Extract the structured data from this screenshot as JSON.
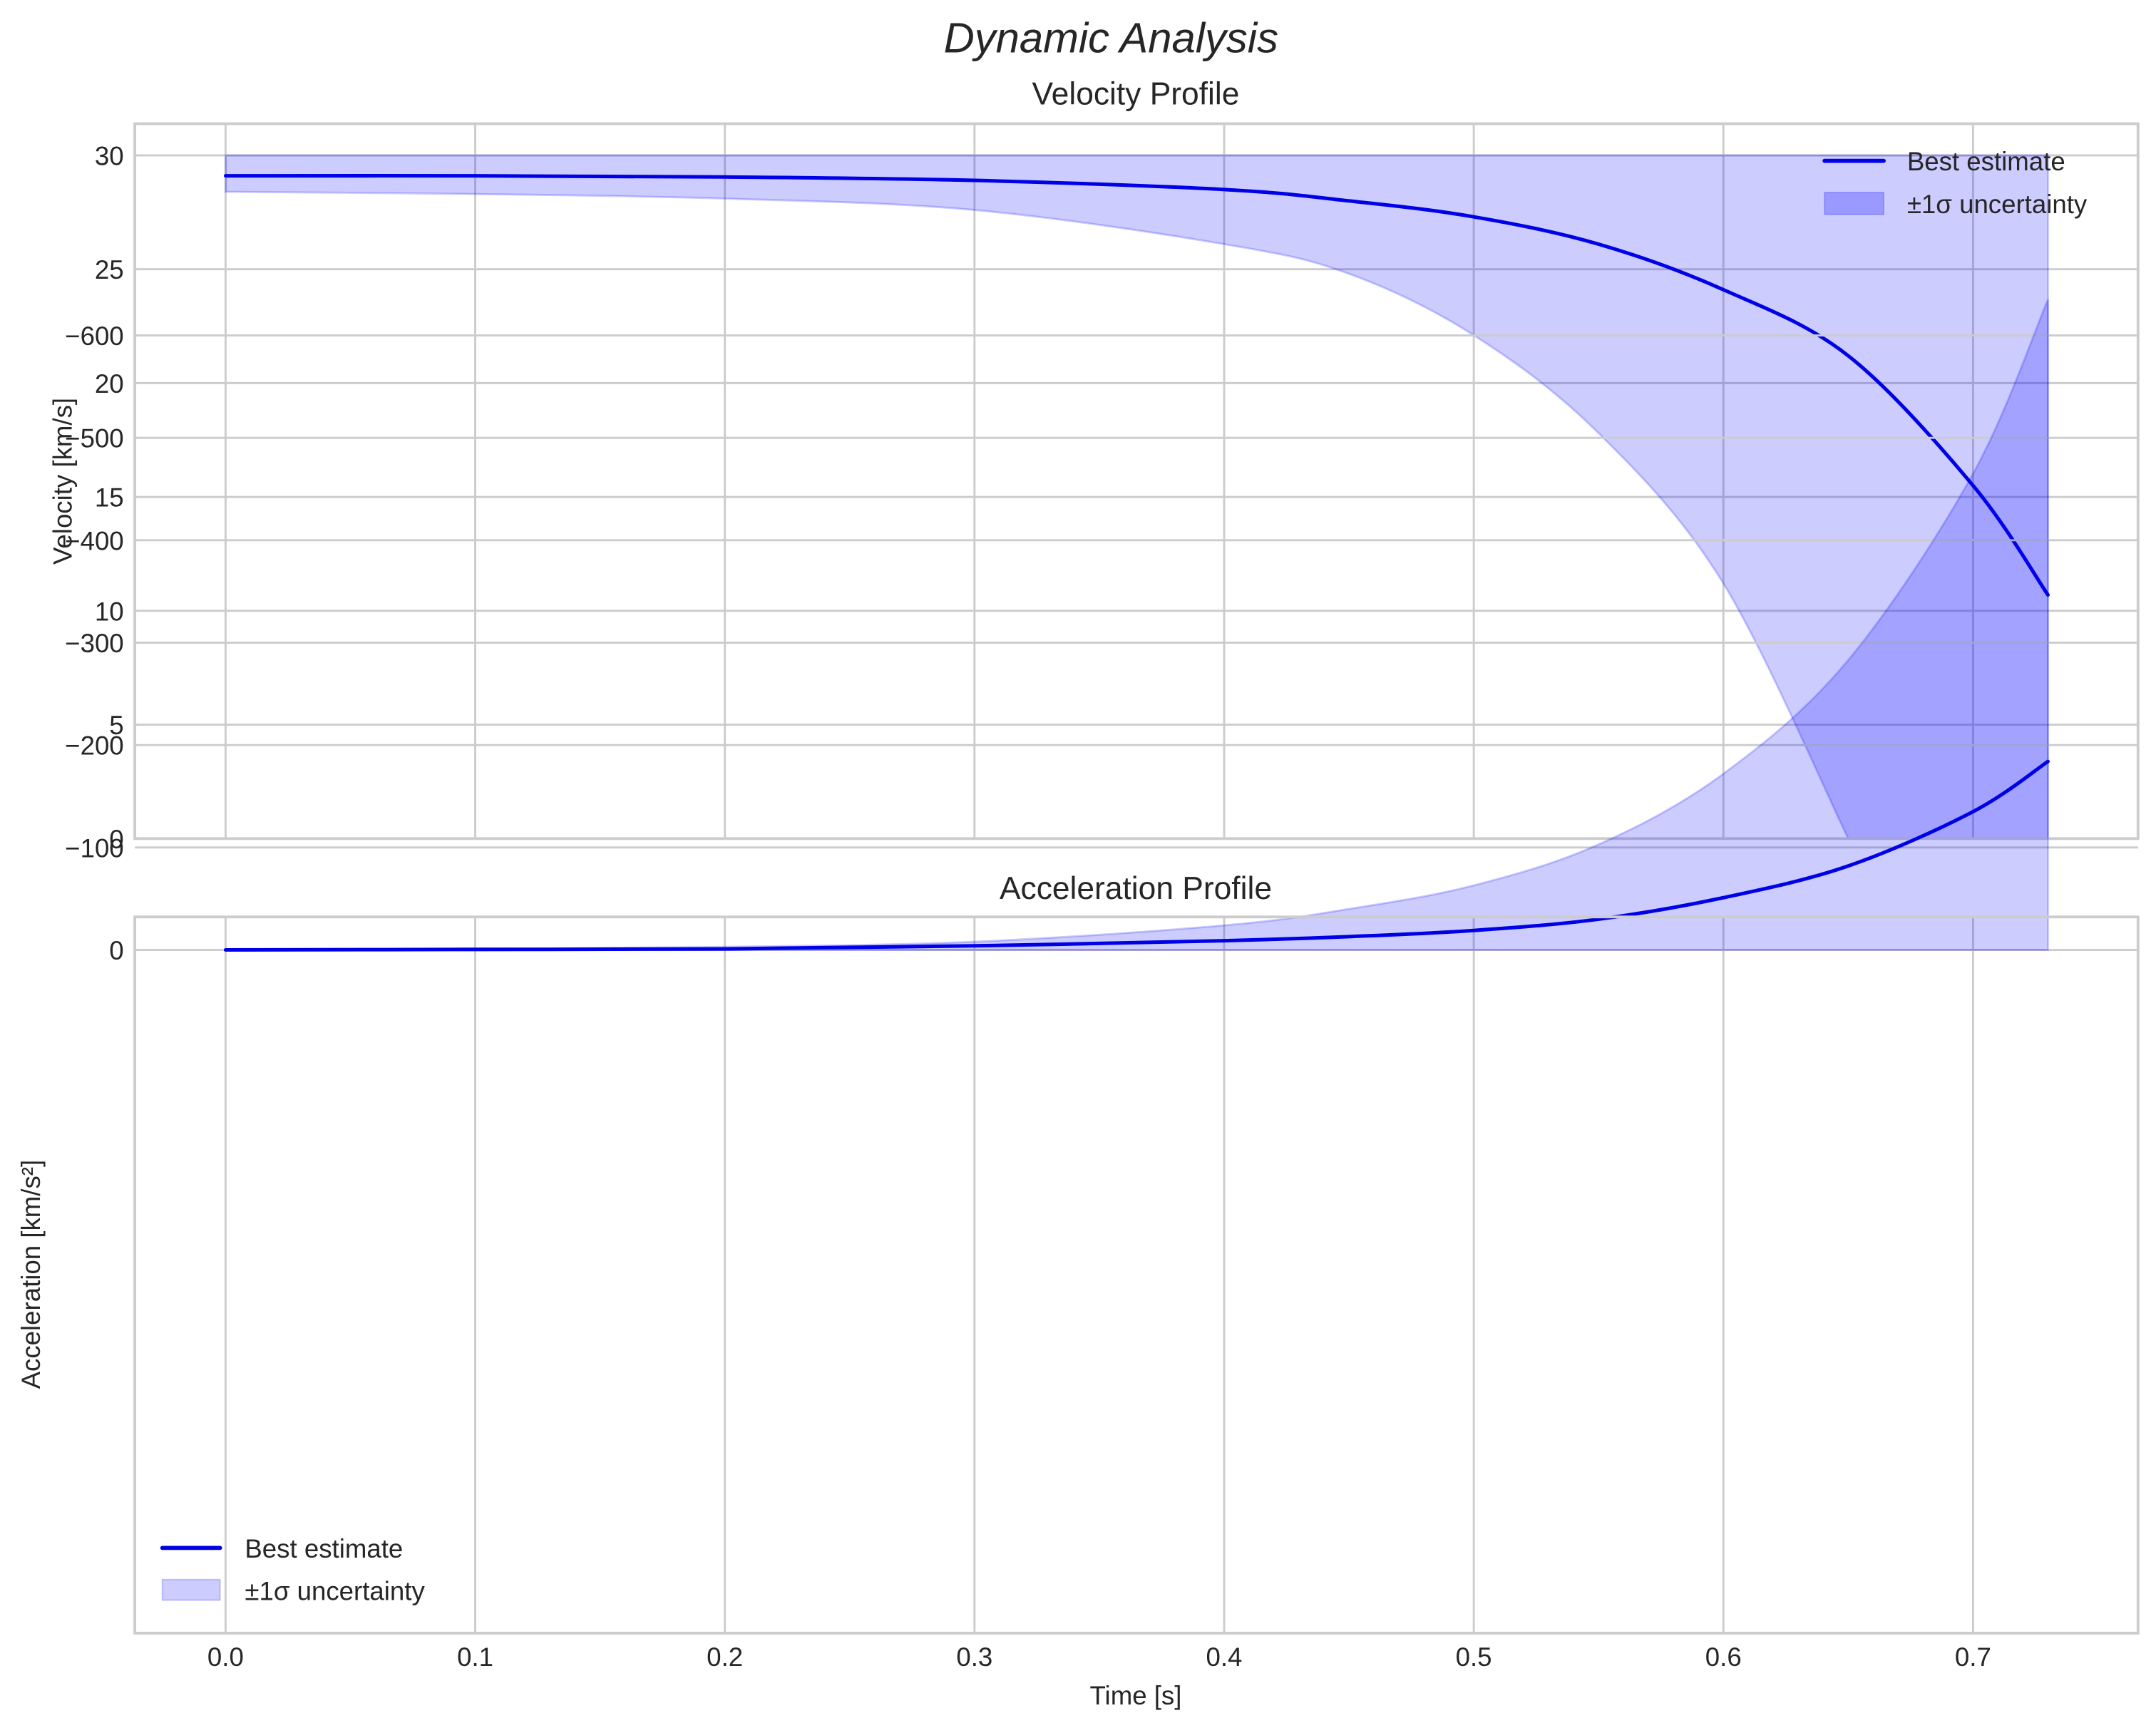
{
  "figure": {
    "suptitle": "Dynamic Analysis",
    "xlabel": "Time [s]",
    "colors": {
      "line": "#0000e6",
      "band": "#0000ff",
      "grid": "#cccccc",
      "text": "#262626"
    }
  },
  "panels": [
    {
      "title": "Velocity Profile",
      "ylabel": "Velocity [km/s]",
      "yticks": [
        "0",
        "5",
        "10",
        "15",
        "20",
        "25",
        "30"
      ],
      "legend": {
        "position": "upper right",
        "items": [
          "Best estimate",
          "±1σ uncertainty"
        ]
      }
    },
    {
      "title": "Acceleration Profile",
      "ylabel": "Acceleration [km/s²]",
      "yticks": [
        "0",
        "−100",
        "−200",
        "−300",
        "−400",
        "−500",
        "−600"
      ],
      "legend": {
        "position": "lower left",
        "items": [
          "Best estimate",
          "±1σ uncertainty"
        ]
      }
    }
  ],
  "xticks": [
    "0.0",
    "0.1",
    "0.2",
    "0.3",
    "0.4",
    "0.5",
    "0.6",
    "0.7"
  ],
  "chart_data": [
    {
      "type": "line",
      "title": "Velocity Profile",
      "xlabel": "Time [s]",
      "ylabel": "Velocity [km/s]",
      "xlim": [
        -0.036,
        0.766
      ],
      "ylim": [
        0,
        31.4
      ],
      "grid": true,
      "legend_position": "upper right",
      "x": [
        0.0,
        0.1,
        0.2,
        0.3,
        0.4,
        0.45,
        0.5,
        0.55,
        0.6,
        0.65,
        0.7,
        0.73
      ],
      "series": [
        {
          "name": "Best estimate",
          "values": [
            29.1,
            29.1,
            29.05,
            28.9,
            28.5,
            28.0,
            27.3,
            26.1,
            24.1,
            21.2,
            15.5,
            10.7
          ]
        },
        {
          "name": "±1σ uncertainty (upper)",
          "values": [
            30.0,
            30.0,
            30.0,
            30.0,
            30.0,
            30.0,
            30.0,
            30.0,
            30.0,
            30.0,
            30.0,
            30.0
          ]
        },
        {
          "name": "±1σ uncertainty (lower)",
          "values": [
            28.4,
            28.3,
            28.1,
            27.6,
            26.1,
            24.8,
            22.1,
            17.8,
            11.2,
            0.0,
            0.0,
            0.0
          ]
        }
      ]
    },
    {
      "type": "line",
      "title": "Acceleration Profile",
      "xlabel": "Time [s]",
      "ylabel": "Acceleration [km/s²]",
      "xlim": [
        -0.036,
        0.766
      ],
      "ylim": [
        -665,
        32
      ],
      "grid": true,
      "legend_position": "lower left",
      "x": [
        0.0,
        0.1,
        0.2,
        0.3,
        0.4,
        0.45,
        0.5,
        0.55,
        0.6,
        0.65,
        0.7,
        0.73
      ],
      "series": [
        {
          "name": "Best estimate",
          "values": [
            0,
            -0.5,
            -1,
            -4,
            -9,
            -13,
            -19,
            -30,
            -51,
            -82,
            -135,
            -184
          ]
        },
        {
          "name": "±1σ uncertainty (upper)",
          "values": [
            0,
            0,
            0,
            0,
            0,
            0,
            0,
            0,
            0,
            0,
            0,
            0
          ]
        },
        {
          "name": "±1σ uncertainty (lower)",
          "values": [
            0,
            -1,
            -3,
            -8,
            -24,
            -40,
            -63,
            -103,
            -172,
            -283,
            -465,
            -635
          ]
        }
      ]
    }
  ]
}
